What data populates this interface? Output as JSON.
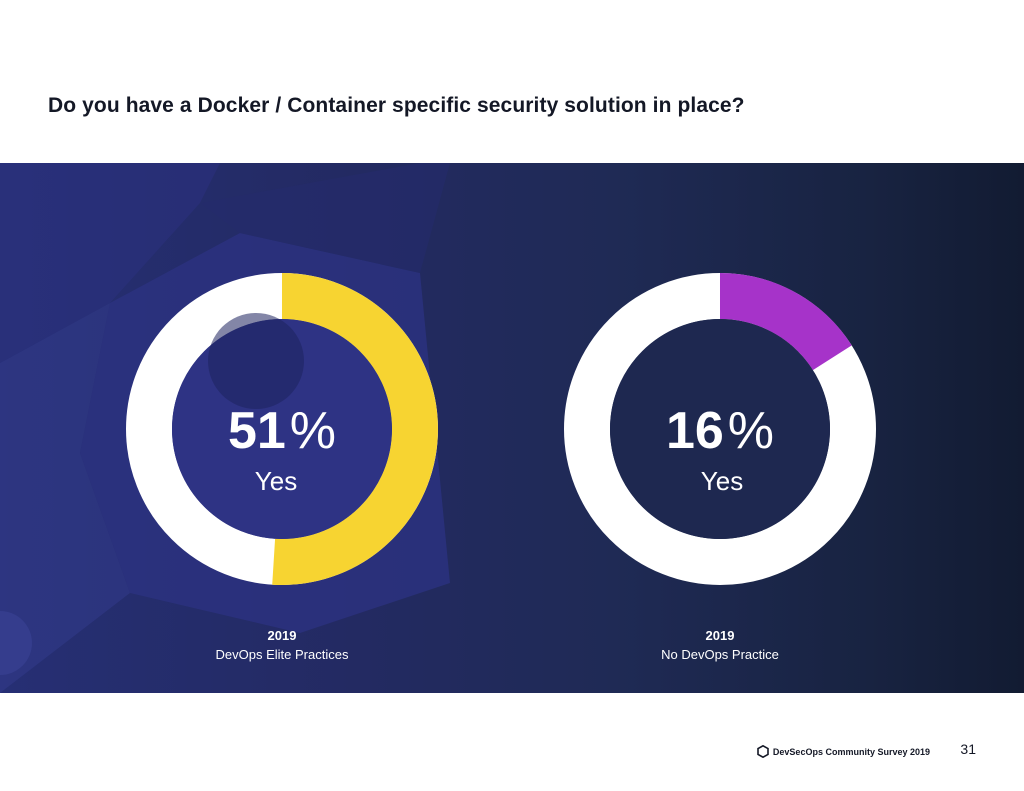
{
  "page": {
    "title": "Do you have a Docker / Container specific security solution in place?",
    "footer_text": "DevSecOps Community Survey 2019",
    "page_number": "31",
    "logo_icon": "hexagon-icon"
  },
  "colors": {
    "panel_bg": "#1f2a55",
    "ring_base": "#ffffff",
    "hole_left": "#2e3384",
    "hole_right": "#1e2850",
    "accent_left": "#f7d431",
    "accent_right": "#a633c9"
  },
  "chart_data": [
    {
      "type": "pie",
      "title": "",
      "center_value": "51",
      "center_unit": "%",
      "center_label": "Yes",
      "year": "2019",
      "group": "DevOps Elite Practices",
      "values": [
        51,
        49
      ],
      "slice_colors": [
        "#f7d431",
        "#ffffff"
      ]
    },
    {
      "type": "pie",
      "title": "",
      "center_value": "16",
      "center_unit": "%",
      "center_label": "Yes",
      "year": "2019",
      "group": "No DevOps Practice",
      "values": [
        16,
        84
      ],
      "slice_colors": [
        "#a633c9",
        "#ffffff"
      ]
    }
  ]
}
